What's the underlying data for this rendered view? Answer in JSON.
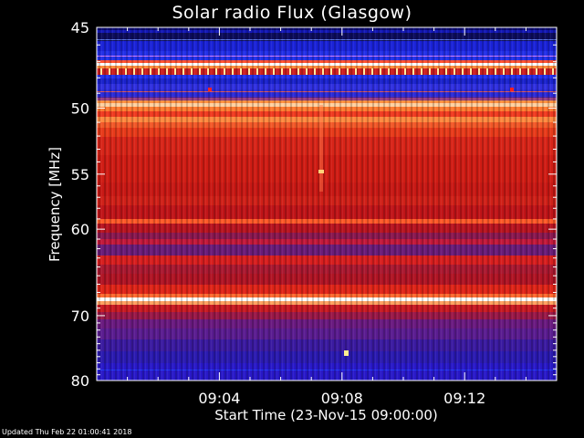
{
  "chart_data": {
    "type": "heatmap",
    "title": "Solar radio Flux (Glasgow)",
    "ylabel": "Frequency [MHz]",
    "xlabel": "Start Time (23-Nov-15 09:00:00)",
    "x_ticks": [
      "09:04",
      "09:08",
      "09:12"
    ],
    "x_tick_minutes": [
      4,
      8,
      12
    ],
    "xlim_minutes": [
      0,
      15
    ],
    "y_ticks": [
      45,
      50,
      55,
      60,
      70,
      80
    ],
    "ylim_mhz": [
      45,
      80
    ],
    "y_scale": "reciprocal",
    "colormap": "blue-red-white",
    "colors": {
      "low": "#10108a",
      "mid": "#d01818",
      "high": "#ffffff",
      "background": "#000000",
      "axis": "#ffffff"
    }
  },
  "footer": {
    "updated": "Updated Thu Feb 22 01:00:41 2018"
  }
}
